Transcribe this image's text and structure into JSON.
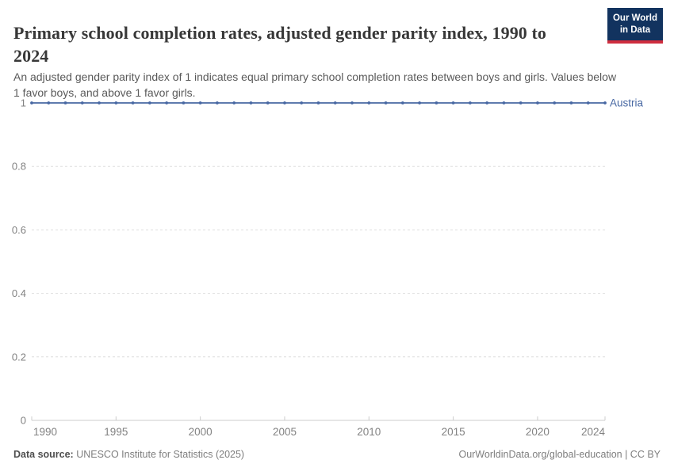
{
  "header": {
    "title": "Primary school completion rates, adjusted gender parity index, 1990 to 2024",
    "subtitle": "An adjusted gender parity index of 1 indicates equal primary school completion rates between boys and girls. Values below 1 favor boys, and above 1 favor girls.",
    "logo": {
      "line1": "Our World",
      "line2": "in Data",
      "bg_color": "#12335f",
      "accent_color": "#cf2d3e"
    }
  },
  "chart_data": {
    "type": "line",
    "title": "Primary school completion rates, adjusted gender parity index, 1990 to 2024",
    "xlabel": "",
    "ylabel": "",
    "grid": "dashed-horizontal",
    "legend_position": "end-of-line-label",
    "xlim": [
      1990,
      2024
    ],
    "ylim": [
      0,
      1
    ],
    "x_ticks": [
      1990,
      1995,
      2000,
      2005,
      2010,
      2015,
      2020,
      2024
    ],
    "y_ticks": [
      0,
      0.2,
      0.4,
      0.6,
      0.8,
      1
    ],
    "axis_label_color": "#828282",
    "gridline_color": "#dedede",
    "axis_line_color": "#cccccc",
    "series": [
      {
        "name": "Austria",
        "color": "#4868a3",
        "x": [
          1990,
          1991,
          1992,
          1993,
          1994,
          1995,
          1996,
          1997,
          1998,
          1999,
          2000,
          2001,
          2002,
          2003,
          2004,
          2005,
          2006,
          2007,
          2008,
          2009,
          2010,
          2011,
          2012,
          2013,
          2014,
          2015,
          2016,
          2017,
          2018,
          2019,
          2020,
          2021,
          2022,
          2023,
          2024
        ],
        "values": [
          1,
          1,
          1,
          1,
          1,
          1,
          1,
          1,
          1,
          1,
          1,
          1,
          1,
          1,
          1,
          1,
          1,
          1,
          1,
          1,
          1,
          1,
          1,
          1,
          1,
          1,
          1,
          1,
          1,
          1,
          1,
          1,
          1,
          1,
          1
        ]
      }
    ]
  },
  "footer": {
    "source_label": "Data source:",
    "source_value": " UNESCO Institute for Statistics (2025)",
    "credit": "OurWorldinData.org/global-education | CC BY"
  }
}
